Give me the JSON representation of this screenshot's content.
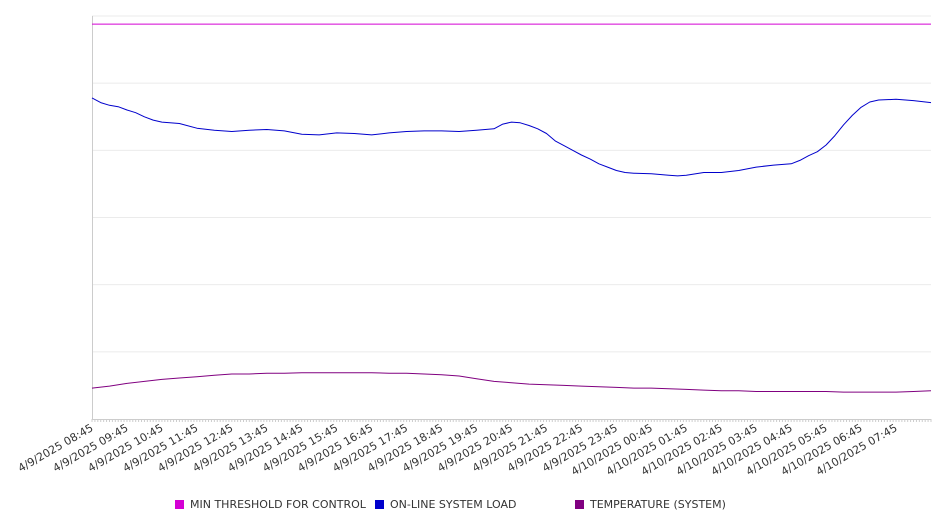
{
  "chart_data": {
    "type": "line",
    "title": "",
    "xlabel": "",
    "ylabel": "",
    "ylim": [
      0,
      6
    ],
    "grid": true,
    "legend_position": "bottom",
    "x_tick_labels": [
      "4/9/2025 08:45",
      "4/9/2025 09:45",
      "4/9/2025 10:45",
      "4/9/2025 11:45",
      "4/9/2025 12:45",
      "4/9/2025 13:45",
      "4/9/2025 14:45",
      "4/9/2025 15:45",
      "4/9/2025 16:45",
      "4/9/2025 17:45",
      "4/9/2025 18:45",
      "4/9/2025 19:45",
      "4/9/2025 20:45",
      "4/9/2025 21:45",
      "4/9/2025 22:45",
      "4/9/2025 23:45",
      "4/10/2025 00:45",
      "4/10/2025 01:45",
      "4/10/2025 02:45",
      "4/10/2025 03:45",
      "4/10/2025 04:45",
      "4/10/2025 05:45",
      "4/10/2025 06:45",
      "4/10/2025 07:45"
    ],
    "series": [
      {
        "name": "MIN THRESHOLD FOR CONTROL",
        "color": "#d400d4",
        "points": [
          [
            0,
            5.88
          ],
          [
            24,
            5.88
          ]
        ]
      },
      {
        "name": "ON-LINE SYSTEM LOAD",
        "color": "#0000cc",
        "points": [
          [
            0,
            4.78
          ],
          [
            0.25,
            4.71
          ],
          [
            0.5,
            4.67
          ],
          [
            0.75,
            4.65
          ],
          [
            1.0,
            4.6
          ],
          [
            1.25,
            4.56
          ],
          [
            1.5,
            4.5
          ],
          [
            1.75,
            4.45
          ],
          [
            2.0,
            4.42
          ],
          [
            2.5,
            4.4
          ],
          [
            3.0,
            4.33
          ],
          [
            3.5,
            4.3
          ],
          [
            4.0,
            4.28
          ],
          [
            4.5,
            4.3
          ],
          [
            5.0,
            4.31
          ],
          [
            5.5,
            4.29
          ],
          [
            6.0,
            4.24
          ],
          [
            6.5,
            4.23
          ],
          [
            7.0,
            4.26
          ],
          [
            7.5,
            4.25
          ],
          [
            8.0,
            4.23
          ],
          [
            8.5,
            4.26
          ],
          [
            9.0,
            4.28
          ],
          [
            9.5,
            4.29
          ],
          [
            10.0,
            4.29
          ],
          [
            10.5,
            4.28
          ],
          [
            11.0,
            4.3
          ],
          [
            11.5,
            4.32
          ],
          [
            11.75,
            4.39
          ],
          [
            12.0,
            4.42
          ],
          [
            12.25,
            4.41
          ],
          [
            12.5,
            4.37
          ],
          [
            12.75,
            4.32
          ],
          [
            13.0,
            4.25
          ],
          [
            13.25,
            4.14
          ],
          [
            13.5,
            4.07
          ],
          [
            13.75,
            4.0
          ],
          [
            14.0,
            3.93
          ],
          [
            14.25,
            3.87
          ],
          [
            14.5,
            3.8
          ],
          [
            14.75,
            3.75
          ],
          [
            15.0,
            3.7
          ],
          [
            15.25,
            3.67
          ],
          [
            15.5,
            3.66
          ],
          [
            16.0,
            3.65
          ],
          [
            16.5,
            3.63
          ],
          [
            16.75,
            3.62
          ],
          [
            17.0,
            3.63
          ],
          [
            17.5,
            3.67
          ],
          [
            18.0,
            3.67
          ],
          [
            18.5,
            3.7
          ],
          [
            19.0,
            3.75
          ],
          [
            19.5,
            3.78
          ],
          [
            20.0,
            3.8
          ],
          [
            20.25,
            3.85
          ],
          [
            20.5,
            3.92
          ],
          [
            20.75,
            3.98
          ],
          [
            21.0,
            4.08
          ],
          [
            21.25,
            4.22
          ],
          [
            21.5,
            4.38
          ],
          [
            21.75,
            4.52
          ],
          [
            22.0,
            4.64
          ],
          [
            22.25,
            4.72
          ],
          [
            22.5,
            4.75
          ],
          [
            23.0,
            4.76
          ],
          [
            23.5,
            4.74
          ],
          [
            24.0,
            4.71
          ]
        ]
      },
      {
        "name": "TEMPERATURE (SYSTEM)",
        "color": "#800080",
        "points": [
          [
            0,
            0.46
          ],
          [
            0.5,
            0.49
          ],
          [
            1.0,
            0.53
          ],
          [
            1.5,
            0.56
          ],
          [
            2.0,
            0.59
          ],
          [
            2.5,
            0.61
          ],
          [
            3.0,
            0.63
          ],
          [
            3.5,
            0.65
          ],
          [
            4.0,
            0.67
          ],
          [
            4.5,
            0.67
          ],
          [
            5.0,
            0.68
          ],
          [
            5.5,
            0.68
          ],
          [
            6.0,
            0.69
          ],
          [
            6.5,
            0.69
          ],
          [
            7.0,
            0.69
          ],
          [
            7.5,
            0.69
          ],
          [
            8.0,
            0.69
          ],
          [
            8.5,
            0.68
          ],
          [
            9.0,
            0.68
          ],
          [
            9.5,
            0.67
          ],
          [
            10.0,
            0.66
          ],
          [
            10.5,
            0.64
          ],
          [
            11.0,
            0.6
          ],
          [
            11.5,
            0.56
          ],
          [
            12.0,
            0.54
          ],
          [
            12.5,
            0.52
          ],
          [
            13.0,
            0.51
          ],
          [
            13.5,
            0.5
          ],
          [
            14.0,
            0.49
          ],
          [
            14.5,
            0.48
          ],
          [
            15.0,
            0.47
          ],
          [
            15.5,
            0.46
          ],
          [
            16.0,
            0.46
          ],
          [
            16.5,
            0.45
          ],
          [
            17.0,
            0.44
          ],
          [
            17.5,
            0.43
          ],
          [
            18.0,
            0.42
          ],
          [
            18.5,
            0.42
          ],
          [
            19.0,
            0.41
          ],
          [
            19.5,
            0.41
          ],
          [
            20.0,
            0.41
          ],
          [
            20.5,
            0.41
          ],
          [
            21.0,
            0.41
          ],
          [
            21.5,
            0.4
          ],
          [
            22.0,
            0.4
          ],
          [
            22.5,
            0.4
          ],
          [
            23.0,
            0.4
          ],
          [
            23.5,
            0.41
          ],
          [
            24.0,
            0.42
          ]
        ]
      }
    ]
  }
}
